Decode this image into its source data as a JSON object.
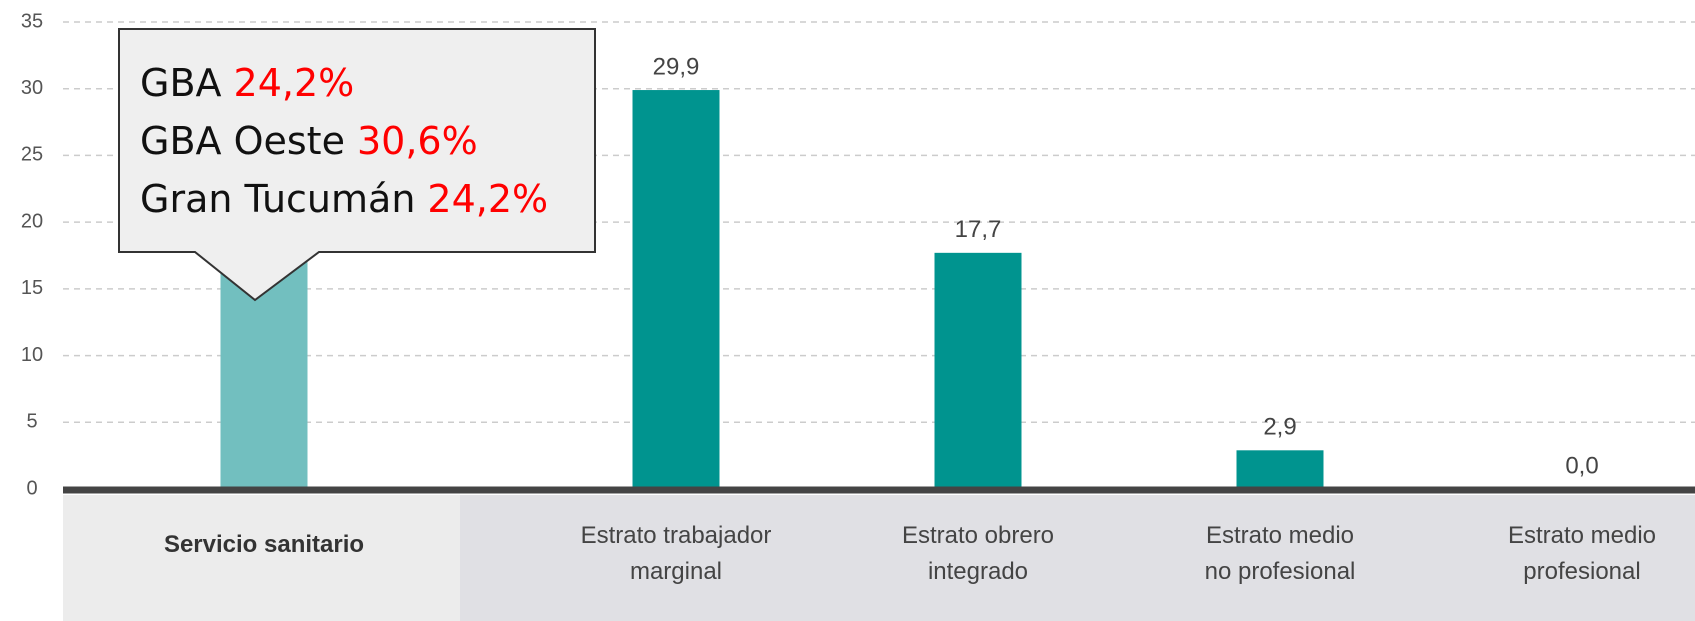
{
  "chart_data": {
    "type": "bar",
    "categories": [
      "Servicio sanitario",
      "Estrato trabajador\nmarginal",
      "Estrato obrero\nintegrado",
      "Estrato medio\nno profesional",
      "Estrato medio\nprofesional"
    ],
    "values": [
      24.2,
      29.9,
      17.7,
      2.9,
      0.0
    ],
    "value_labels": [
      null,
      "29,9",
      "17,7",
      "2,9",
      "0,0"
    ],
    "colors": [
      "#72bfbf",
      "#00948f",
      "#00948f",
      "#00948f",
      "#00948f"
    ],
    "ylim": [
      0,
      35
    ],
    "yticks": [
      0,
      5,
      10,
      15,
      20,
      25,
      30,
      35
    ],
    "grid": true,
    "annotation": {
      "lines": [
        {
          "label": "GBA",
          "value": "24,2%"
        },
        {
          "label": "GBA Oeste",
          "value": "30,6%"
        },
        {
          "label": "Gran Tucumán",
          "value": "24,2%"
        }
      ]
    }
  }
}
